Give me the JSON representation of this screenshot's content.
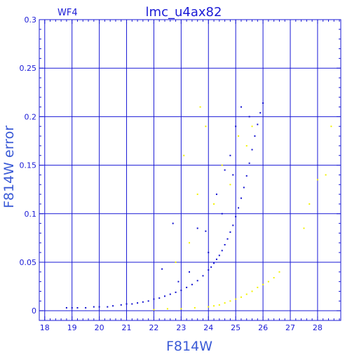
{
  "chart_data": {
    "type": "scatter",
    "title": "lmc_u4ax82",
    "corner_label": "WF4",
    "xlabel": "F814W",
    "ylabel": "F814W error",
    "xlim": [
      17.8,
      28.85
    ],
    "ylim": [
      -0.01,
      0.3
    ],
    "xticks": [
      18,
      19,
      20,
      21,
      22,
      23,
      24,
      25,
      26,
      27,
      28
    ],
    "yticks": [
      0,
      0.05,
      0.1,
      0.15,
      0.2,
      0.25,
      0.3
    ],
    "ytick_labels": [
      "0",
      "0.05",
      "0.1",
      "0.15",
      "0.2",
      "0.25",
      "0.3"
    ],
    "grid": true,
    "colors": {
      "axis": "#1a1ad6",
      "grid": "#1a1ad6",
      "main_series": "#1010d0",
      "secondary_series": "#f2f200"
    },
    "series": [
      {
        "color": "#1010d0",
        "points": [
          [
            18.8,
            0.003
          ],
          [
            19.0,
            0.003
          ],
          [
            19.2,
            0.003
          ],
          [
            19.5,
            0.003
          ],
          [
            19.8,
            0.004
          ],
          [
            20.0,
            0.004
          ],
          [
            20.3,
            0.004
          ],
          [
            20.5,
            0.005
          ],
          [
            20.8,
            0.006
          ],
          [
            21.0,
            0.007
          ],
          [
            21.2,
            0.007
          ],
          [
            21.4,
            0.008
          ],
          [
            21.6,
            0.009
          ],
          [
            21.8,
            0.01
          ],
          [
            22.0,
            0.012
          ],
          [
            22.2,
            0.013
          ],
          [
            22.4,
            0.015
          ],
          [
            22.6,
            0.017
          ],
          [
            22.8,
            0.019
          ],
          [
            23.0,
            0.021
          ],
          [
            23.2,
            0.024
          ],
          [
            23.4,
            0.027
          ],
          [
            23.6,
            0.031
          ],
          [
            23.8,
            0.036
          ],
          [
            24.0,
            0.042
          ],
          [
            24.1,
            0.045
          ],
          [
            24.2,
            0.049
          ],
          [
            24.3,
            0.053
          ],
          [
            24.4,
            0.057
          ],
          [
            24.5,
            0.062
          ],
          [
            24.6,
            0.068
          ],
          [
            24.7,
            0.074
          ],
          [
            24.8,
            0.081
          ],
          [
            24.9,
            0.088
          ],
          [
            25.0,
            0.097
          ],
          [
            25.1,
            0.106
          ],
          [
            25.2,
            0.116
          ],
          [
            25.3,
            0.127
          ],
          [
            25.4,
            0.139
          ],
          [
            25.5,
            0.152
          ],
          [
            25.6,
            0.166
          ],
          [
            25.7,
            0.18
          ],
          [
            25.8,
            0.192
          ],
          [
            25.9,
            0.204
          ],
          [
            26.0,
            0.214
          ],
          [
            22.7,
            0.09
          ],
          [
            22.3,
            0.043
          ],
          [
            23.6,
            0.085
          ],
          [
            23.9,
            0.082
          ],
          [
            24.3,
            0.12
          ],
          [
            24.6,
            0.145
          ],
          [
            24.8,
            0.16
          ],
          [
            25.0,
            0.19
          ],
          [
            25.2,
            0.21
          ],
          [
            24.0,
            0.06
          ],
          [
            23.3,
            0.04
          ],
          [
            22.9,
            0.03
          ],
          [
            24.5,
            0.1
          ],
          [
            25.5,
            0.2
          ],
          [
            24.9,
            0.14
          ]
        ]
      },
      {
        "color": "#f2f200",
        "points": [
          [
            22.0,
            0.001
          ],
          [
            22.5,
            0.002
          ],
          [
            23.0,
            0.002
          ],
          [
            23.5,
            0.003
          ],
          [
            24.0,
            0.004
          ],
          [
            24.2,
            0.005
          ],
          [
            24.4,
            0.006
          ],
          [
            24.6,
            0.008
          ],
          [
            24.8,
            0.01
          ],
          [
            25.0,
            0.012
          ],
          [
            25.2,
            0.014
          ],
          [
            25.4,
            0.017
          ],
          [
            25.6,
            0.02
          ],
          [
            25.8,
            0.024
          ],
          [
            26.0,
            0.027
          ],
          [
            26.2,
            0.03
          ],
          [
            26.4,
            0.034
          ],
          [
            26.6,
            0.04
          ],
          [
            27.5,
            0.085
          ],
          [
            27.7,
            0.11
          ],
          [
            28.0,
            0.135
          ],
          [
            28.3,
            0.14
          ],
          [
            28.5,
            0.19
          ],
          [
            23.3,
            0.07
          ],
          [
            23.6,
            0.12
          ],
          [
            23.7,
            0.21
          ],
          [
            23.9,
            0.19
          ],
          [
            24.2,
            0.11
          ],
          [
            24.5,
            0.15
          ],
          [
            25.4,
            0.17
          ],
          [
            25.6,
            0.19
          ],
          [
            22.8,
            0.05
          ],
          [
            23.1,
            0.16
          ],
          [
            24.8,
            0.13
          ],
          [
            25.1,
            0.18
          ]
        ]
      }
    ]
  }
}
